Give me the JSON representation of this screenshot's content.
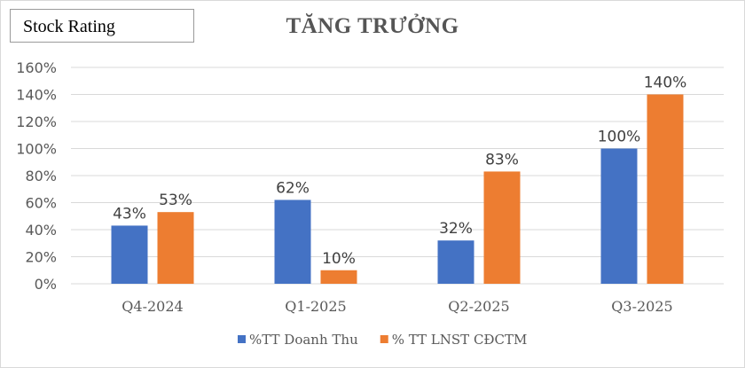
{
  "badge": {
    "label": "Stock Rating"
  },
  "chart_data": {
    "type": "bar",
    "title": "TĂNG TRƯỞNG",
    "categories": [
      "Q4-2024",
      "Q1-2025",
      "Q2-2025",
      "Q3-2025"
    ],
    "series": [
      {
        "name": "%TT Doanh Thu",
        "values": [
          43,
          62,
          32,
          100
        ],
        "color": "#4472C4"
      },
      {
        "name": "% TT LNST CĐCTM",
        "values": [
          53,
          10,
          83,
          140
        ],
        "color": "#ED7D31"
      }
    ],
    "ylim": [
      0,
      160
    ],
    "yticks": [
      "0%",
      "20%",
      "40%",
      "60%",
      "80%",
      "100%",
      "120%",
      "140%",
      "160%"
    ],
    "data_labels": [
      [
        "43%",
        "62%",
        "32%",
        "100%"
      ],
      [
        "53%",
        "10%",
        "83%",
        "140%"
      ]
    ],
    "grid": true,
    "legend": "bottom",
    "xlabel": "",
    "ylabel": ""
  }
}
